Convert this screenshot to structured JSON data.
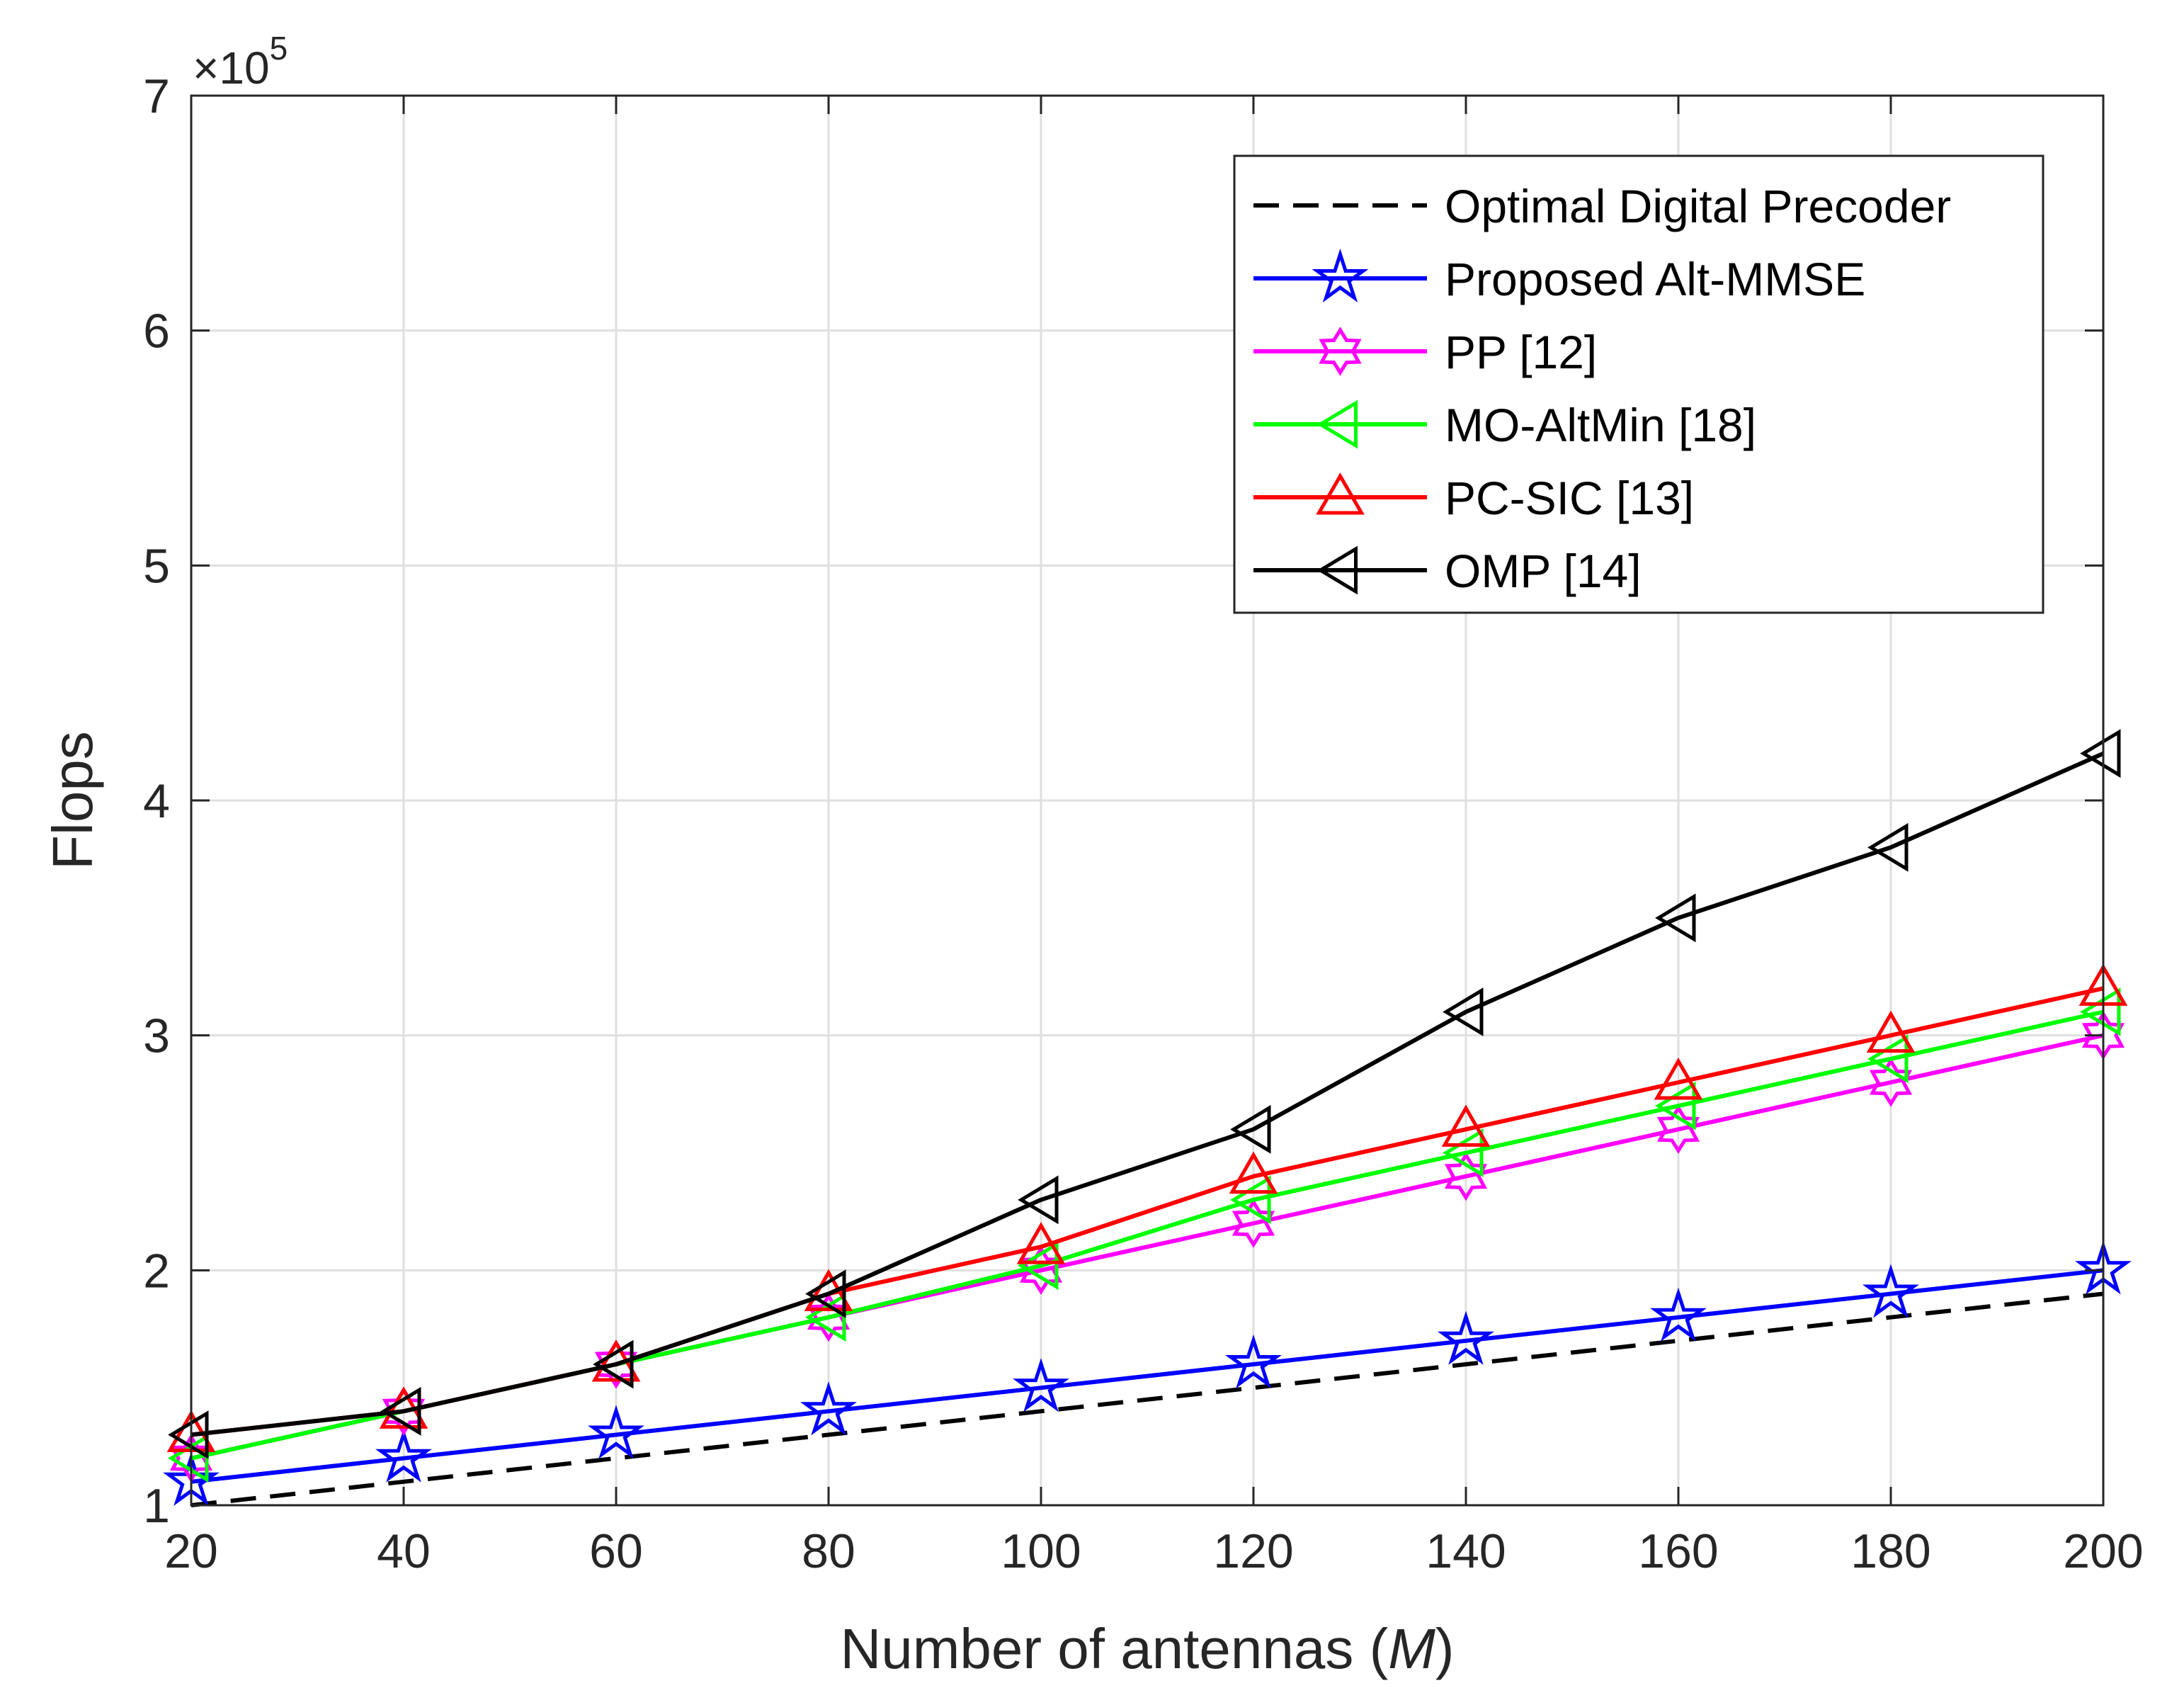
{
  "chart_data": {
    "type": "line",
    "title": "",
    "xlabel": "Number of antennas (",
    "xlabel_italic": "M",
    "xlabel_suffix": ")",
    "ylabel": "Flops",
    "y_exponent_prefix": "×10",
    "y_exponent_power": "5",
    "xlim": [
      20,
      200
    ],
    "ylim": [
      1,
      7
    ],
    "x_ticks": [
      "20",
      "40",
      "60",
      "80",
      "100",
      "120",
      "140",
      "160",
      "180",
      "200"
    ],
    "y_ticks": [
      "1",
      "2",
      "3",
      "4",
      "5",
      "6",
      "7"
    ],
    "grid": true,
    "legend_location": "top-right",
    "x": [
      20,
      40,
      60,
      80,
      100,
      120,
      140,
      160,
      180,
      200
    ],
    "series": [
      {
        "name": "Optimal Digital Precoder",
        "color": "#000000",
        "dashed": true,
        "marker": "none",
        "values": [
          1.0,
          1.1,
          1.2,
          1.3,
          1.4,
          1.5,
          1.6,
          1.7,
          1.8,
          1.9
        ]
      },
      {
        "name": "Proposed Alt-MMSE",
        "color": "#0000ff",
        "dashed": false,
        "marker": "pentagram",
        "values": [
          1.1,
          1.2,
          1.3,
          1.4,
          1.5,
          1.6,
          1.7,
          1.8,
          1.9,
          2.0
        ]
      },
      {
        "name": "PP [12]",
        "color": "#ff00ff",
        "dashed": false,
        "marker": "hexagram",
        "values": [
          1.2,
          1.4,
          1.6,
          1.8,
          2.0,
          2.2,
          2.4,
          2.6,
          2.8,
          3.0
        ]
      },
      {
        "name": "MO-AltMin [18]",
        "color": "#00ff00",
        "dashed": false,
        "marker": "triangle-left",
        "values": [
          1.2,
          1.4,
          1.6,
          1.8,
          2.02,
          2.3,
          2.5,
          2.7,
          2.9,
          3.1
        ]
      },
      {
        "name": "PC-SIC [13]",
        "color": "#ff0000",
        "dashed": false,
        "marker": "triangle-up",
        "values": [
          1.3,
          1.4,
          1.6,
          1.9,
          2.1,
          2.4,
          2.6,
          2.8,
          3.0,
          3.2
        ]
      },
      {
        "name": "OMP [14]",
        "color": "#000000",
        "dashed": false,
        "marker": "triangle-left",
        "values": [
          1.3,
          1.4,
          1.6,
          1.9,
          2.3,
          2.6,
          3.1,
          3.5,
          3.8,
          4.2
        ]
      }
    ]
  }
}
